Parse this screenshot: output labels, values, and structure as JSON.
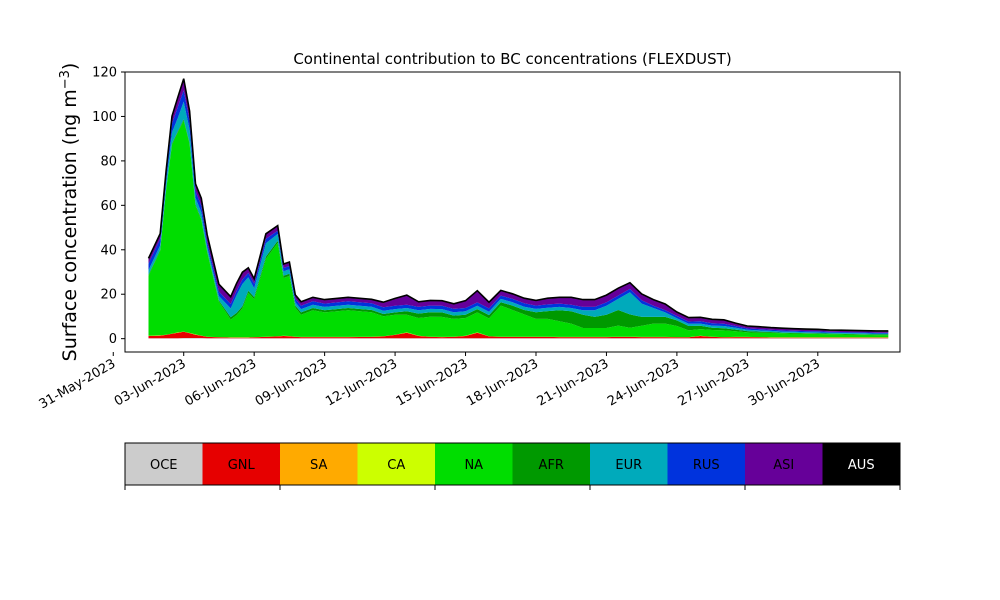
{
  "chart_data": {
    "type": "area",
    "stacked": true,
    "title": "Continental contribution to BC concentrations (FLEXDUST)",
    "ylabel": "Surface concentration (ng m",
    "ylabel_sup": "−3",
    "ylabel_close": ")",
    "xlabel": "",
    "ylim": [
      -6,
      120
    ],
    "xlim": [
      "2023-05-31T12:00",
      "2023-07-03T12:00"
    ],
    "yticks": [
      0,
      20,
      40,
      60,
      80,
      100,
      120
    ],
    "xticks": [
      "31-May-2023",
      "03-Jun-2023",
      "06-Jun-2023",
      "09-Jun-2023",
      "12-Jun-2023",
      "15-Jun-2023",
      "18-Jun-2023",
      "21-Jun-2023",
      "24-Jun-2023",
      "27-Jun-2023",
      "30-Jun-2023"
    ],
    "grid": false,
    "legend_position": "bottom colorbar",
    "x": [
      "2023-06-01T12:00",
      "2023-06-02T00:00",
      "2023-06-02T06:00",
      "2023-06-02T12:00",
      "2023-06-02T18:00",
      "2023-06-03T00:00",
      "2023-06-03T06:00",
      "2023-06-03T12:00",
      "2023-06-03T18:00",
      "2023-06-04T00:00",
      "2023-06-04T12:00",
      "2023-06-05T00:00",
      "2023-06-05T06:00",
      "2023-06-05T12:00",
      "2023-06-05T18:00",
      "2023-06-06T00:00",
      "2023-06-06T12:00",
      "2023-06-07T00:00",
      "2023-06-07T06:00",
      "2023-06-07T12:00",
      "2023-06-07T18:00",
      "2023-06-08T00:00",
      "2023-06-08T12:00",
      "2023-06-09T00:00",
      "2023-06-10T00:00",
      "2023-06-11T00:00",
      "2023-06-11T12:00",
      "2023-06-12T00:00",
      "2023-06-12T12:00",
      "2023-06-13T00:00",
      "2023-06-13T12:00",
      "2023-06-14T00:00",
      "2023-06-14T12:00",
      "2023-06-15T00:00",
      "2023-06-15T12:00",
      "2023-06-16T00:00",
      "2023-06-16T12:00",
      "2023-06-17T00:00",
      "2023-06-17T12:00",
      "2023-06-18T00:00",
      "2023-06-18T12:00",
      "2023-06-19T00:00",
      "2023-06-19T12:00",
      "2023-06-20T00:00",
      "2023-06-20T12:00",
      "2023-06-21T00:00",
      "2023-06-21T12:00",
      "2023-06-22T00:00",
      "2023-06-22T12:00",
      "2023-06-23T00:00",
      "2023-06-23T12:00",
      "2023-06-24T00:00",
      "2023-06-24T12:00",
      "2023-06-25T00:00",
      "2023-06-25T12:00",
      "2023-06-26T00:00",
      "2023-06-26T12:00",
      "2023-06-27T00:00",
      "2023-06-27T12:00",
      "2023-06-28T00:00",
      "2023-06-28T12:00",
      "2023-06-29T00:00",
      "2023-06-29T12:00",
      "2023-06-30T00:00",
      "2023-06-30T12:00",
      "2023-07-01T00:00",
      "2023-07-01T12:00",
      "2023-07-02T00:00",
      "2023-07-02T12:00",
      "2023-07-03T00:00"
    ],
    "series": [
      {
        "name": "OCE",
        "color": "#cccccc",
        "values": [
          0.2,
          0.2,
          0.2,
          0.2,
          0.2,
          0.3,
          0.3,
          0.3,
          0.3,
          0.2,
          0.2,
          0.2,
          0.2,
          0.2,
          0.2,
          0.2,
          0.2,
          0.2,
          0.2,
          0.2,
          0.2,
          0.2,
          0.2,
          0.2,
          0.2,
          0.2,
          0.2,
          0.2,
          0.2,
          0.2,
          0.2,
          0.2,
          0.2,
          0.2,
          0.2,
          0.2,
          0.2,
          0.2,
          0.2,
          0.2,
          0.2,
          0.2,
          0.2,
          0.2,
          0.2,
          0.2,
          0.2,
          0.2,
          0.2,
          0.2,
          0.2,
          0.2,
          0.2,
          0.2,
          0.2,
          0.2,
          0.2,
          0.2,
          0.2,
          0.2,
          0.2,
          0.2,
          0.2,
          0.2,
          0.2,
          0.2,
          0.2,
          0.2,
          0.2,
          0.2
        ]
      },
      {
        "name": "GNL",
        "color": "#e60000",
        "values": [
          1.0,
          1.2,
          1.5,
          2.0,
          2.5,
          2.8,
          2.2,
          1.5,
          1.0,
          0.6,
          0.4,
          0.3,
          0.3,
          0.3,
          0.3,
          0.4,
          0.6,
          0.8,
          1.0,
          0.9,
          0.6,
          0.5,
          0.5,
          0.5,
          0.5,
          0.6,
          0.8,
          1.5,
          2.5,
          1.0,
          0.6,
          0.5,
          0.6,
          1.0,
          2.5,
          0.8,
          0.6,
          0.6,
          0.6,
          0.6,
          0.6,
          0.5,
          0.5,
          0.5,
          0.5,
          0.5,
          0.6,
          0.6,
          0.5,
          0.5,
          0.5,
          0.4,
          0.4,
          1.0,
          0.6,
          0.4,
          0.5,
          0.5,
          0.4,
          0.3,
          0.3,
          0.3,
          0.3,
          0.3,
          0.3,
          0.3,
          0.3,
          0.3,
          0.3,
          0.3
        ]
      },
      {
        "name": "SA",
        "color": "#ffaa00",
        "values": [
          0,
          0,
          0,
          0,
          0,
          0,
          0,
          0,
          0,
          0,
          0,
          0,
          0,
          0,
          0,
          0,
          0,
          0,
          0,
          0,
          0,
          0,
          0,
          0,
          0,
          0,
          0,
          0,
          0,
          0,
          0,
          0,
          0,
          0,
          0,
          0,
          0,
          0,
          0,
          0,
          0,
          0,
          0,
          0,
          0,
          0,
          0,
          0,
          0,
          0,
          0,
          0,
          0,
          0,
          0,
          0,
          0,
          0,
          0,
          0,
          0,
          0,
          0,
          0,
          0,
          0,
          0,
          0,
          0,
          0
        ]
      },
      {
        "name": "CA",
        "color": "#ccff00",
        "values": [
          0.1,
          0.1,
          0.1,
          0.1,
          0.1,
          0.1,
          0.1,
          0.1,
          0.1,
          0.1,
          0.1,
          0.1,
          0.1,
          0.1,
          0.1,
          0.1,
          0.1,
          0.1,
          0.1,
          0.1,
          0.1,
          0.1,
          0.1,
          0.1,
          0.1,
          0.1,
          0.1,
          0.1,
          0.1,
          0.1,
          0.1,
          0.1,
          0.1,
          0.1,
          0.1,
          0.1,
          0.1,
          0.1,
          0.1,
          0.1,
          0.1,
          0.1,
          0.1,
          0.1,
          0.1,
          0.1,
          0.1,
          0.1,
          0.1,
          0.1,
          0.1,
          0.1,
          0.1,
          0.1,
          0.1,
          0.1,
          0.1,
          0.1,
          0.1,
          0.1,
          0.1,
          0.1,
          0.1,
          0.1,
          0.1,
          0.1,
          0.1,
          0.1,
          0.1,
          0.1
        ]
      },
      {
        "name": "NA",
        "color": "#00dd00",
        "values": [
          27,
          38,
          65,
          85,
          90,
          95,
          85,
          58,
          52,
          38,
          16,
          8,
          10,
          13,
          20,
          17,
          35,
          42,
          26,
          27,
          13,
          10,
          12,
          11,
          12,
          11,
          9,
          9,
          8,
          8,
          9,
          9,
          8,
          8,
          9,
          8,
          14,
          12,
          10,
          8,
          8,
          7,
          6,
          4,
          4,
          4,
          5,
          4,
          5,
          6,
          6,
          5,
          3,
          3,
          3,
          3,
          2.5,
          2,
          2,
          2,
          1.8,
          1.7,
          1.6,
          1.5,
          1.4,
          1.3,
          1.2,
          1.1,
          1.0,
          1.0
        ]
      },
      {
        "name": "AFR",
        "color": "#009900",
        "values": [
          0.5,
          0.5,
          0.5,
          0.5,
          0.5,
          0.5,
          0.5,
          0.5,
          0.5,
          0.5,
          0.5,
          1.0,
          1.0,
          1.0,
          1.0,
          1.0,
          1.0,
          1.0,
          1.0,
          1.0,
          1.0,
          1.0,
          1.0,
          1.0,
          1.0,
          1.0,
          1.0,
          1.0,
          1.5,
          2.0,
          2.0,
          2.0,
          1.5,
          1.5,
          1.5,
          1.5,
          1.5,
          2.0,
          2.0,
          3.0,
          3.5,
          5.0,
          5.5,
          6.0,
          5.0,
          6.0,
          7.0,
          6.0,
          4.0,
          3.0,
          3.0,
          2.5,
          2.0,
          1.5,
          1.0,
          1.0,
          0.8,
          0.6,
          0.5,
          0.4,
          0.3,
          0.3,
          0.3,
          0.3,
          0.3,
          0.3,
          0.3,
          0.3,
          0.3,
          0.3
        ]
      },
      {
        "name": "EUR",
        "color": "#00aabb",
        "values": [
          2,
          2,
          3,
          5,
          6,
          8,
          6,
          3,
          3,
          2,
          2,
          4,
          8,
          10,
          6,
          4,
          6,
          3,
          2,
          2,
          1.5,
          1.5,
          1.5,
          1.5,
          1.5,
          1.5,
          1.5,
          1.5,
          1.5,
          1.5,
          1.5,
          1.5,
          1.5,
          1.5,
          1.5,
          1.5,
          1.5,
          1.5,
          1.5,
          1.5,
          1.5,
          1.5,
          1.5,
          2.0,
          3.0,
          4.0,
          5.0,
          10.0,
          6.0,
          4.0,
          2.0,
          1.0,
          1.0,
          1.0,
          1.0,
          1.0,
          0.8,
          0.6,
          0.5,
          0.5,
          0.5,
          0.5,
          0.4,
          0.4,
          0.4,
          0.4,
          0.4,
          0.4,
          0.4,
          0.4
        ]
      },
      {
        "name": "RUS",
        "color": "#0033dd",
        "values": [
          3,
          3,
          3,
          4,
          5,
          5,
          4,
          3,
          3,
          2,
          2,
          2,
          2,
          2,
          2,
          2,
          2,
          1.5,
          1.5,
          1.5,
          1.5,
          1.5,
          1.5,
          1.5,
          1.5,
          1.5,
          1.5,
          1.5,
          1.5,
          1.5,
          1.5,
          1.5,
          1.5,
          1.5,
          1.5,
          1.5,
          1.5,
          1.5,
          1.5,
          1.5,
          1.5,
          1.5,
          1.5,
          1.5,
          1.5,
          1.5,
          1.5,
          1.5,
          1.5,
          1.0,
          1.0,
          1.0,
          1.0,
          1.0,
          1.0,
          1.0,
          0.8,
          0.6,
          0.6,
          0.5,
          0.5,
          0.5,
          0.5,
          0.5,
          0.4,
          0.4,
          0.4,
          0.4,
          0.4,
          0.4
        ]
      },
      {
        "name": "ASI",
        "color": "#660099",
        "values": [
          2,
          2,
          2,
          3,
          4,
          5,
          4,
          3,
          3,
          3,
          3,
          3,
          3,
          3,
          2,
          2,
          2,
          2,
          1.5,
          1.5,
          1.5,
          1.5,
          1.5,
          1.5,
          1.5,
          1.5,
          2.0,
          3.0,
          4.0,
          2.0,
          2.0,
          2.0,
          2.0,
          3.0,
          5.0,
          2.5,
          2.0,
          2.0,
          2.0,
          2.0,
          2.5,
          2.5,
          3.0,
          3.0,
          3.0,
          3.0,
          3.0,
          2.5,
          2.5,
          2.5,
          2.5,
          1.5,
          1.5,
          1.5,
          1.5,
          1.5,
          1.0,
          0.8,
          0.8,
          0.7,
          0.7,
          0.6,
          0.6,
          0.6,
          0.5,
          0.5,
          0.5,
          0.5,
          0.5,
          0.5
        ]
      },
      {
        "name": "AUS",
        "color": "#000000",
        "values": [
          0.3,
          0.3,
          0.3,
          0.3,
          0.3,
          0.3,
          0.3,
          0.3,
          0.3,
          0.3,
          0.3,
          0.3,
          0.3,
          0.3,
          0.3,
          0.3,
          0.3,
          0.3,
          0.3,
          0.3,
          0.3,
          0.3,
          0.3,
          0.3,
          0.3,
          0.3,
          0.3,
          0.3,
          0.3,
          0.3,
          0.3,
          0.3,
          0.3,
          0.3,
          0.3,
          0.3,
          0.3,
          0.3,
          0.3,
          0.3,
          0.3,
          0.3,
          0.3,
          0.3,
          0.3,
          0.3,
          0.3,
          0.3,
          0.3,
          0.3,
          0.3,
          0.3,
          0.3,
          0.3,
          0.3,
          0.3,
          0.3,
          0.3,
          0.3,
          0.3,
          0.3,
          0.3,
          0.3,
          0.3,
          0.3,
          0.3,
          0.3,
          0.3,
          0.3,
          0.3
        ]
      }
    ]
  }
}
